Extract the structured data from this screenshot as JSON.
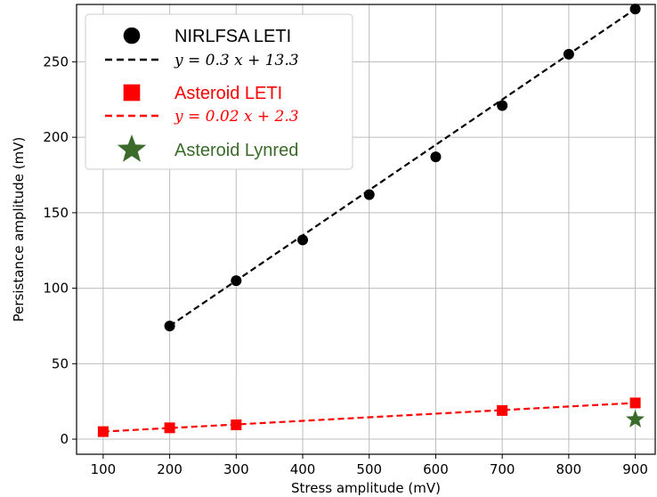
{
  "chart_data": {
    "type": "scatter",
    "xlabel": "Stress amplitude (mV)",
    "ylabel": "Persistance amplitude (mV)",
    "xlim": [
      60,
      930
    ],
    "ylim": [
      -10,
      288
    ],
    "xticks": [
      100,
      200,
      300,
      400,
      500,
      600,
      700,
      800,
      900
    ],
    "yticks": [
      0,
      50,
      100,
      150,
      200,
      250
    ],
    "grid": true,
    "legend_position": "top-left",
    "series": [
      {
        "name": "NIRLFSA LETI",
        "color": "#000000",
        "marker": "circle",
        "points": [
          [
            200,
            75
          ],
          [
            300,
            105
          ],
          [
            400,
            132
          ],
          [
            500,
            162
          ],
          [
            600,
            187
          ],
          [
            700,
            221
          ],
          [
            800,
            255
          ],
          [
            900,
            285
          ]
        ]
      },
      {
        "name": "Asteroid LETI",
        "color": "#ff0000",
        "marker": "square",
        "points": [
          [
            100,
            5
          ],
          [
            200,
            7.5
          ],
          [
            300,
            9.5
          ],
          [
            700,
            19
          ],
          [
            900,
            24
          ]
        ]
      },
      {
        "name": "Asteroid Lynred",
        "color": "#3a6b2a",
        "marker": "star",
        "points": [
          [
            900,
            13
          ]
        ]
      }
    ],
    "fits": [
      {
        "equation": "y = 0.3 x + 13.3",
        "color": "#000000",
        "x_range": [
          200,
          900
        ],
        "y_range": [
          75,
          285
        ]
      },
      {
        "equation": "y = 0.02 x + 2.3",
        "color": "#ff0000",
        "x_range": [
          100,
          900
        ],
        "y_range": [
          5,
          24
        ]
      }
    ]
  }
}
